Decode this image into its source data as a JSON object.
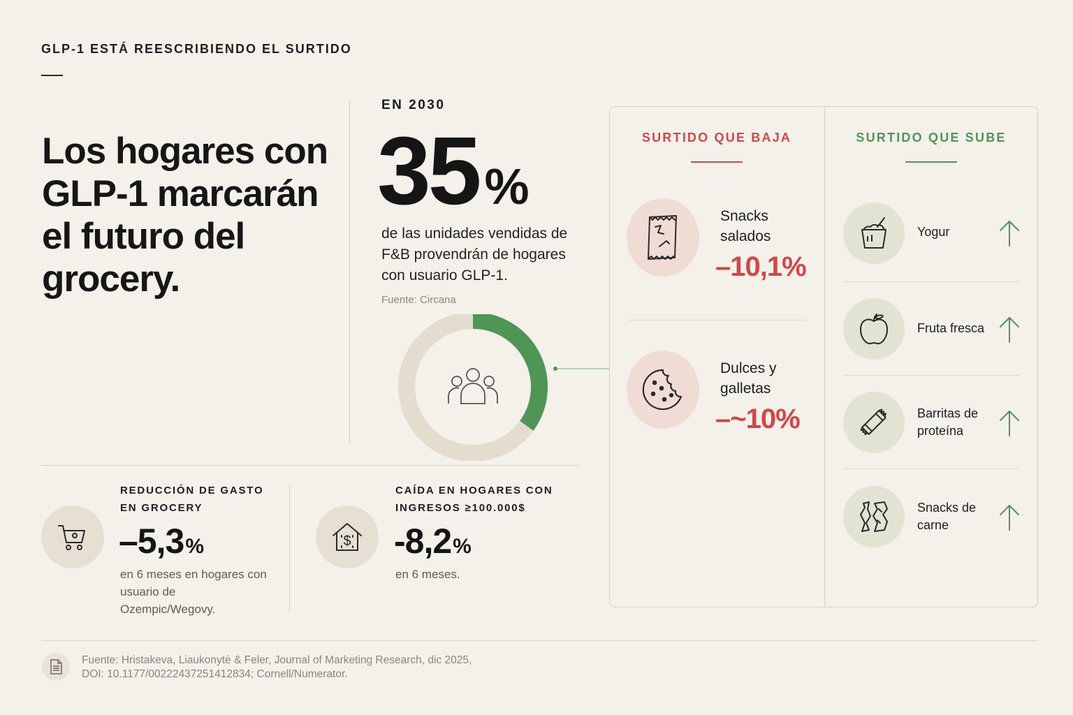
{
  "kicker": "GLP-1 ESTÁ REESCRIBIENDO EL SURTIDO",
  "headline": "Los hogares con GLP-1 marcarán el futuro del grocery.",
  "highlight": {
    "year_label": "EN 2030",
    "value": "35",
    "unit": "%",
    "description": "de las unidades vendidas de F&B provendrán de hogares con usuario GLP-1.",
    "source": "Fuente: Circana",
    "share": 0.35,
    "colors": {
      "fill": "#4f9556",
      "track": "#e3dccf"
    },
    "icon": "people-icon"
  },
  "stats": [
    {
      "label": "REDUCCIÓN DE GASTO EN GROCERY",
      "value": "–5,3",
      "unit": "%",
      "description": "en 6 meses en hogares con usuario de Ozempic/Wegovy.",
      "icon": "shopping-cart-icon"
    },
    {
      "label": "CAÍDA EN HOGARES CON INGRESOS ≥100.000$",
      "value": "-8,2",
      "unit": "%",
      "description": "en 6 meses.",
      "icon": "house-dollar-icon"
    }
  ],
  "panel": {
    "down": {
      "title": "SURTIDO QUE BAJA",
      "color": "#d04848",
      "items": [
        {
          "label": "Snacks salados",
          "value": "–10,1%",
          "icon": "chip-bag-icon"
        },
        {
          "label": "Dulces y galletas",
          "value": "–~10%",
          "icon": "cookie-icon"
        }
      ]
    },
    "up": {
      "title": "SURTIDO QUE SUBE",
      "color": "#4f9556",
      "items": [
        {
          "label": "Yogur",
          "icon": "yogurt-icon"
        },
        {
          "label": "Fruta fresca",
          "icon": "apple-icon"
        },
        {
          "label": "Barritas de proteína",
          "icon": "protein-bar-icon"
        },
        {
          "label": "Snacks de carne",
          "icon": "jerky-icon"
        }
      ]
    }
  },
  "footer": {
    "source": "Fuente: Hristakeva, Liaukonytė & Feler, Journal of Marketing Research, dic 2025, DOI: 10.1177/00222437251412834; Cornell/Numerator.",
    "icon": "document-icon"
  }
}
